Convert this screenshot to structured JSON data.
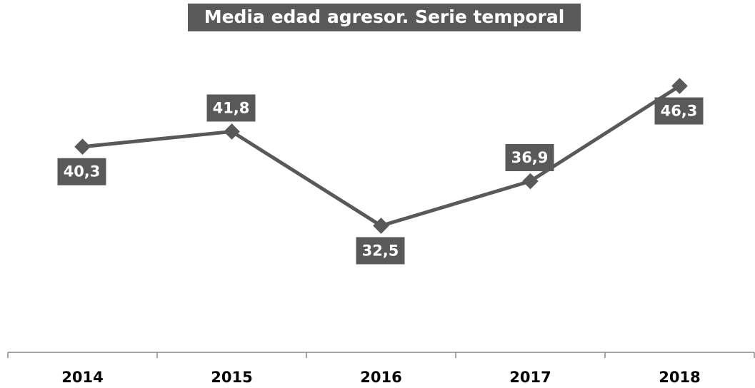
{
  "chart_data": {
    "type": "line",
    "title": "Media edad agresor. Serie temporal",
    "categories": [
      "2014",
      "2015",
      "2016",
      "2017",
      "2018"
    ],
    "series": [
      {
        "color": "#595959",
        "values": [
          40.3,
          41.8,
          32.5,
          36.9,
          46.3
        ],
        "value_labels": [
          "40,3",
          "41,8",
          "32,5",
          "36,9",
          "46,3"
        ]
      }
    ],
    "ylim": [
      20,
      50
    ]
  }
}
